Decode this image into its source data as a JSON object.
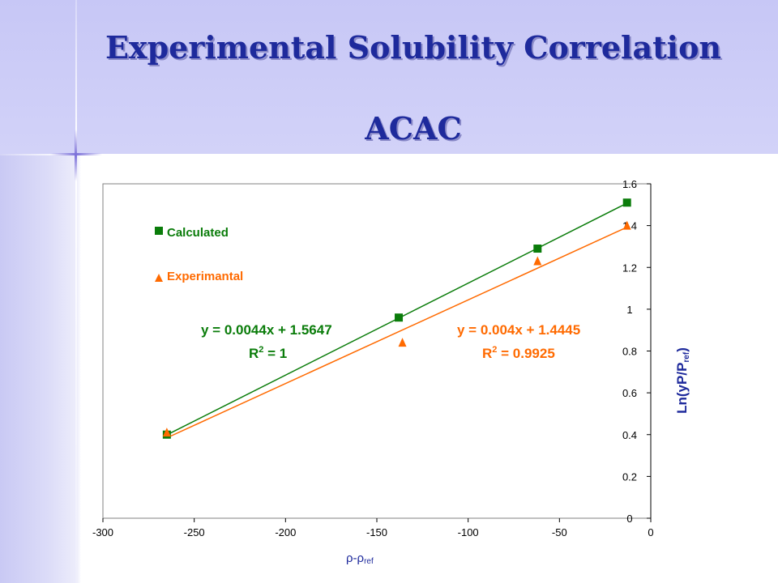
{
  "slide": {
    "title_line1": "Experimental Solubility Correlation",
    "title_line2": "ACAC"
  },
  "colors": {
    "calculated": "#0a7c0a",
    "experimental": "#ff6a00",
    "title": "#1e2a9c"
  },
  "chart_data": {
    "type": "scatter",
    "xlim": [
      -300,
      0
    ],
    "ylim": [
      0,
      1.6
    ],
    "x_ticks": [
      "-300",
      "-250",
      "-200",
      "-150",
      "-100",
      "-50",
      "0"
    ],
    "y_ticks": [
      "0",
      "0.2",
      "0.4",
      "0.6",
      "0.8",
      "1",
      "1.2",
      "1.4",
      "1.6"
    ],
    "xlabel_main": "ρ-ρ",
    "xlabel_sub": "ref",
    "ylabel_main": "Ln(yP/P",
    "ylabel_sub": "ref",
    "ylabel_end": ")",
    "grid": false,
    "legend_position": "top-left",
    "series": [
      {
        "name": "Calculated",
        "marker": "square",
        "color": "#0a7c0a",
        "points": [
          [
            -265,
            0.4
          ],
          [
            -138,
            0.96
          ],
          [
            -62,
            1.29
          ],
          [
            -13,
            1.51
          ]
        ],
        "trendline": {
          "slope": 0.0044,
          "intercept": 1.5647
        },
        "equation": "y = 0.0044x + 1.5647",
        "r2_label": "R",
        "r2_exp": "2",
        "r2_value": " = 1"
      },
      {
        "name": "Experimantal",
        "marker": "triangle",
        "color": "#ff6a00",
        "points": [
          [
            -265,
            0.41
          ],
          [
            -136,
            0.84
          ],
          [
            -62,
            1.23
          ],
          [
            -13,
            1.4
          ]
        ],
        "trendline": {
          "slope": 0.004,
          "intercept": 1.4445
        },
        "equation": "y = 0.004x + 1.4445",
        "r2_label": "R",
        "r2_exp": "2",
        "r2_value": " = 0.9925"
      }
    ]
  }
}
